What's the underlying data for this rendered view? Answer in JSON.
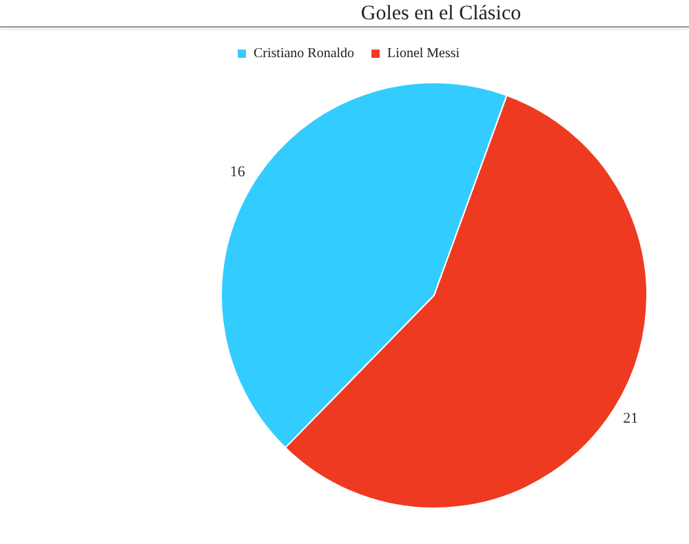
{
  "chart_data": {
    "type": "pie",
    "title": "Goles en el Clásico",
    "categories": [
      "Cristiano Ronaldo",
      "Lionel Messi"
    ],
    "values": [
      16,
      21
    ],
    "colors": [
      "#33ccff",
      "#ee3a20"
    ],
    "data_labels": true,
    "legend": "top left"
  }
}
